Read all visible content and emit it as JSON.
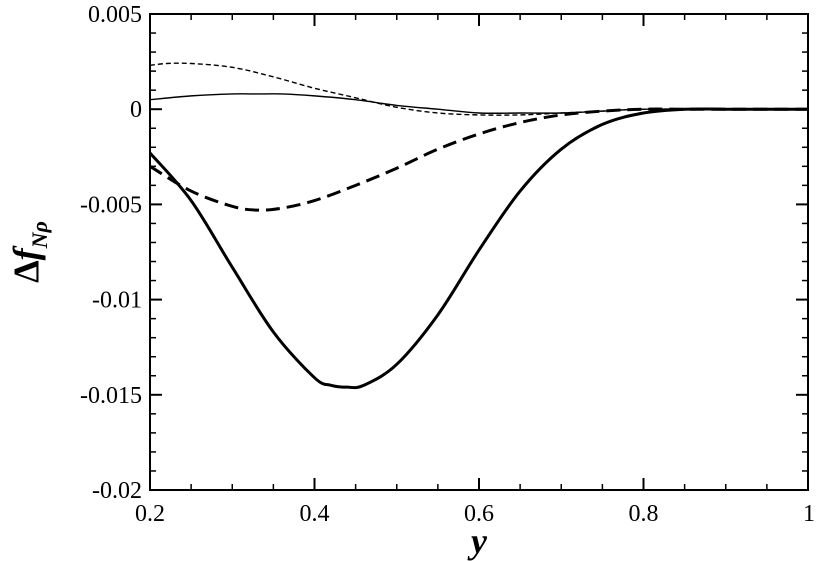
{
  "chart_data": {
    "type": "line",
    "title": "",
    "xlabel": "y",
    "ylabel": {
      "prefix": "Δ",
      "main": "f",
      "subscript": "Nρ"
    },
    "xlim": [
      0.2,
      1.0
    ],
    "ylim": [
      -0.02,
      0.005
    ],
    "x_ticks": [
      0.2,
      0.4,
      0.6,
      0.8,
      1.0
    ],
    "x_tick_labels": [
      "0.2",
      "0.4",
      "0.6",
      "0.8",
      "1"
    ],
    "x_minor_step": 0.05,
    "y_ticks": [
      0.005,
      0.0,
      -0.005,
      -0.01,
      -0.015,
      -0.02
    ],
    "y_tick_labels": [
      "0.005",
      "0",
      "-0.005",
      "-0.01",
      "-0.015",
      "-0.02"
    ],
    "y_minor_step": 0.001,
    "grid": false,
    "legend": "none",
    "series": [
      {
        "style": "thick-solid",
        "x": [
          0.2,
          0.25,
          0.3,
          0.35,
          0.4,
          0.42,
          0.44,
          0.46,
          0.5,
          0.55,
          0.6,
          0.65,
          0.7,
          0.75,
          0.8,
          0.85,
          0.9,
          0.95,
          1.0
        ],
        "y": [
          -0.0023,
          -0.0048,
          -0.0083,
          -0.0117,
          -0.0141,
          -0.0145,
          -0.0146,
          -0.0145,
          -0.0134,
          -0.0108,
          -0.0074,
          -0.0043,
          -0.0021,
          -0.0008,
          -0.0002,
          0.0,
          0.0,
          0.0,
          0.0
        ]
      },
      {
        "style": "thick-dashed",
        "x": [
          0.2,
          0.25,
          0.3,
          0.33,
          0.36,
          0.4,
          0.45,
          0.5,
          0.55,
          0.6,
          0.65,
          0.7,
          0.75,
          0.8,
          0.85,
          0.9,
          1.0
        ],
        "y": [
          -0.003,
          -0.0043,
          -0.0051,
          -0.0053,
          -0.0052,
          -0.0048,
          -0.004,
          -0.0031,
          -0.0021,
          -0.0013,
          -0.0007,
          -0.0003,
          -0.0001,
          0.0,
          0.0,
          0.0,
          0.0
        ]
      },
      {
        "style": "thin-solid",
        "x": [
          0.2,
          0.25,
          0.3,
          0.33,
          0.36,
          0.4,
          0.45,
          0.5,
          0.55,
          0.6,
          0.65,
          0.7,
          0.75,
          0.8,
          0.9,
          1.0
        ],
        "y": [
          0.0005,
          0.0007,
          0.0008,
          0.0008,
          0.0008,
          0.0007,
          0.0005,
          0.0002,
          0.0,
          -0.0002,
          -0.0002,
          -0.0002,
          -0.0001,
          0.0,
          0.0,
          0.0
        ]
      },
      {
        "style": "thin-dashed",
        "x": [
          0.2,
          0.22,
          0.25,
          0.3,
          0.35,
          0.4,
          0.45,
          0.5,
          0.55,
          0.6,
          0.65,
          0.7,
          0.75,
          0.8,
          0.9,
          1.0
        ],
        "y": [
          0.0023,
          0.0024,
          0.0024,
          0.0022,
          0.0017,
          0.0011,
          0.0006,
          0.0001,
          -0.0002,
          -0.0003,
          -0.0003,
          -0.0002,
          -0.0001,
          0.0,
          0.0,
          0.0
        ]
      }
    ]
  }
}
